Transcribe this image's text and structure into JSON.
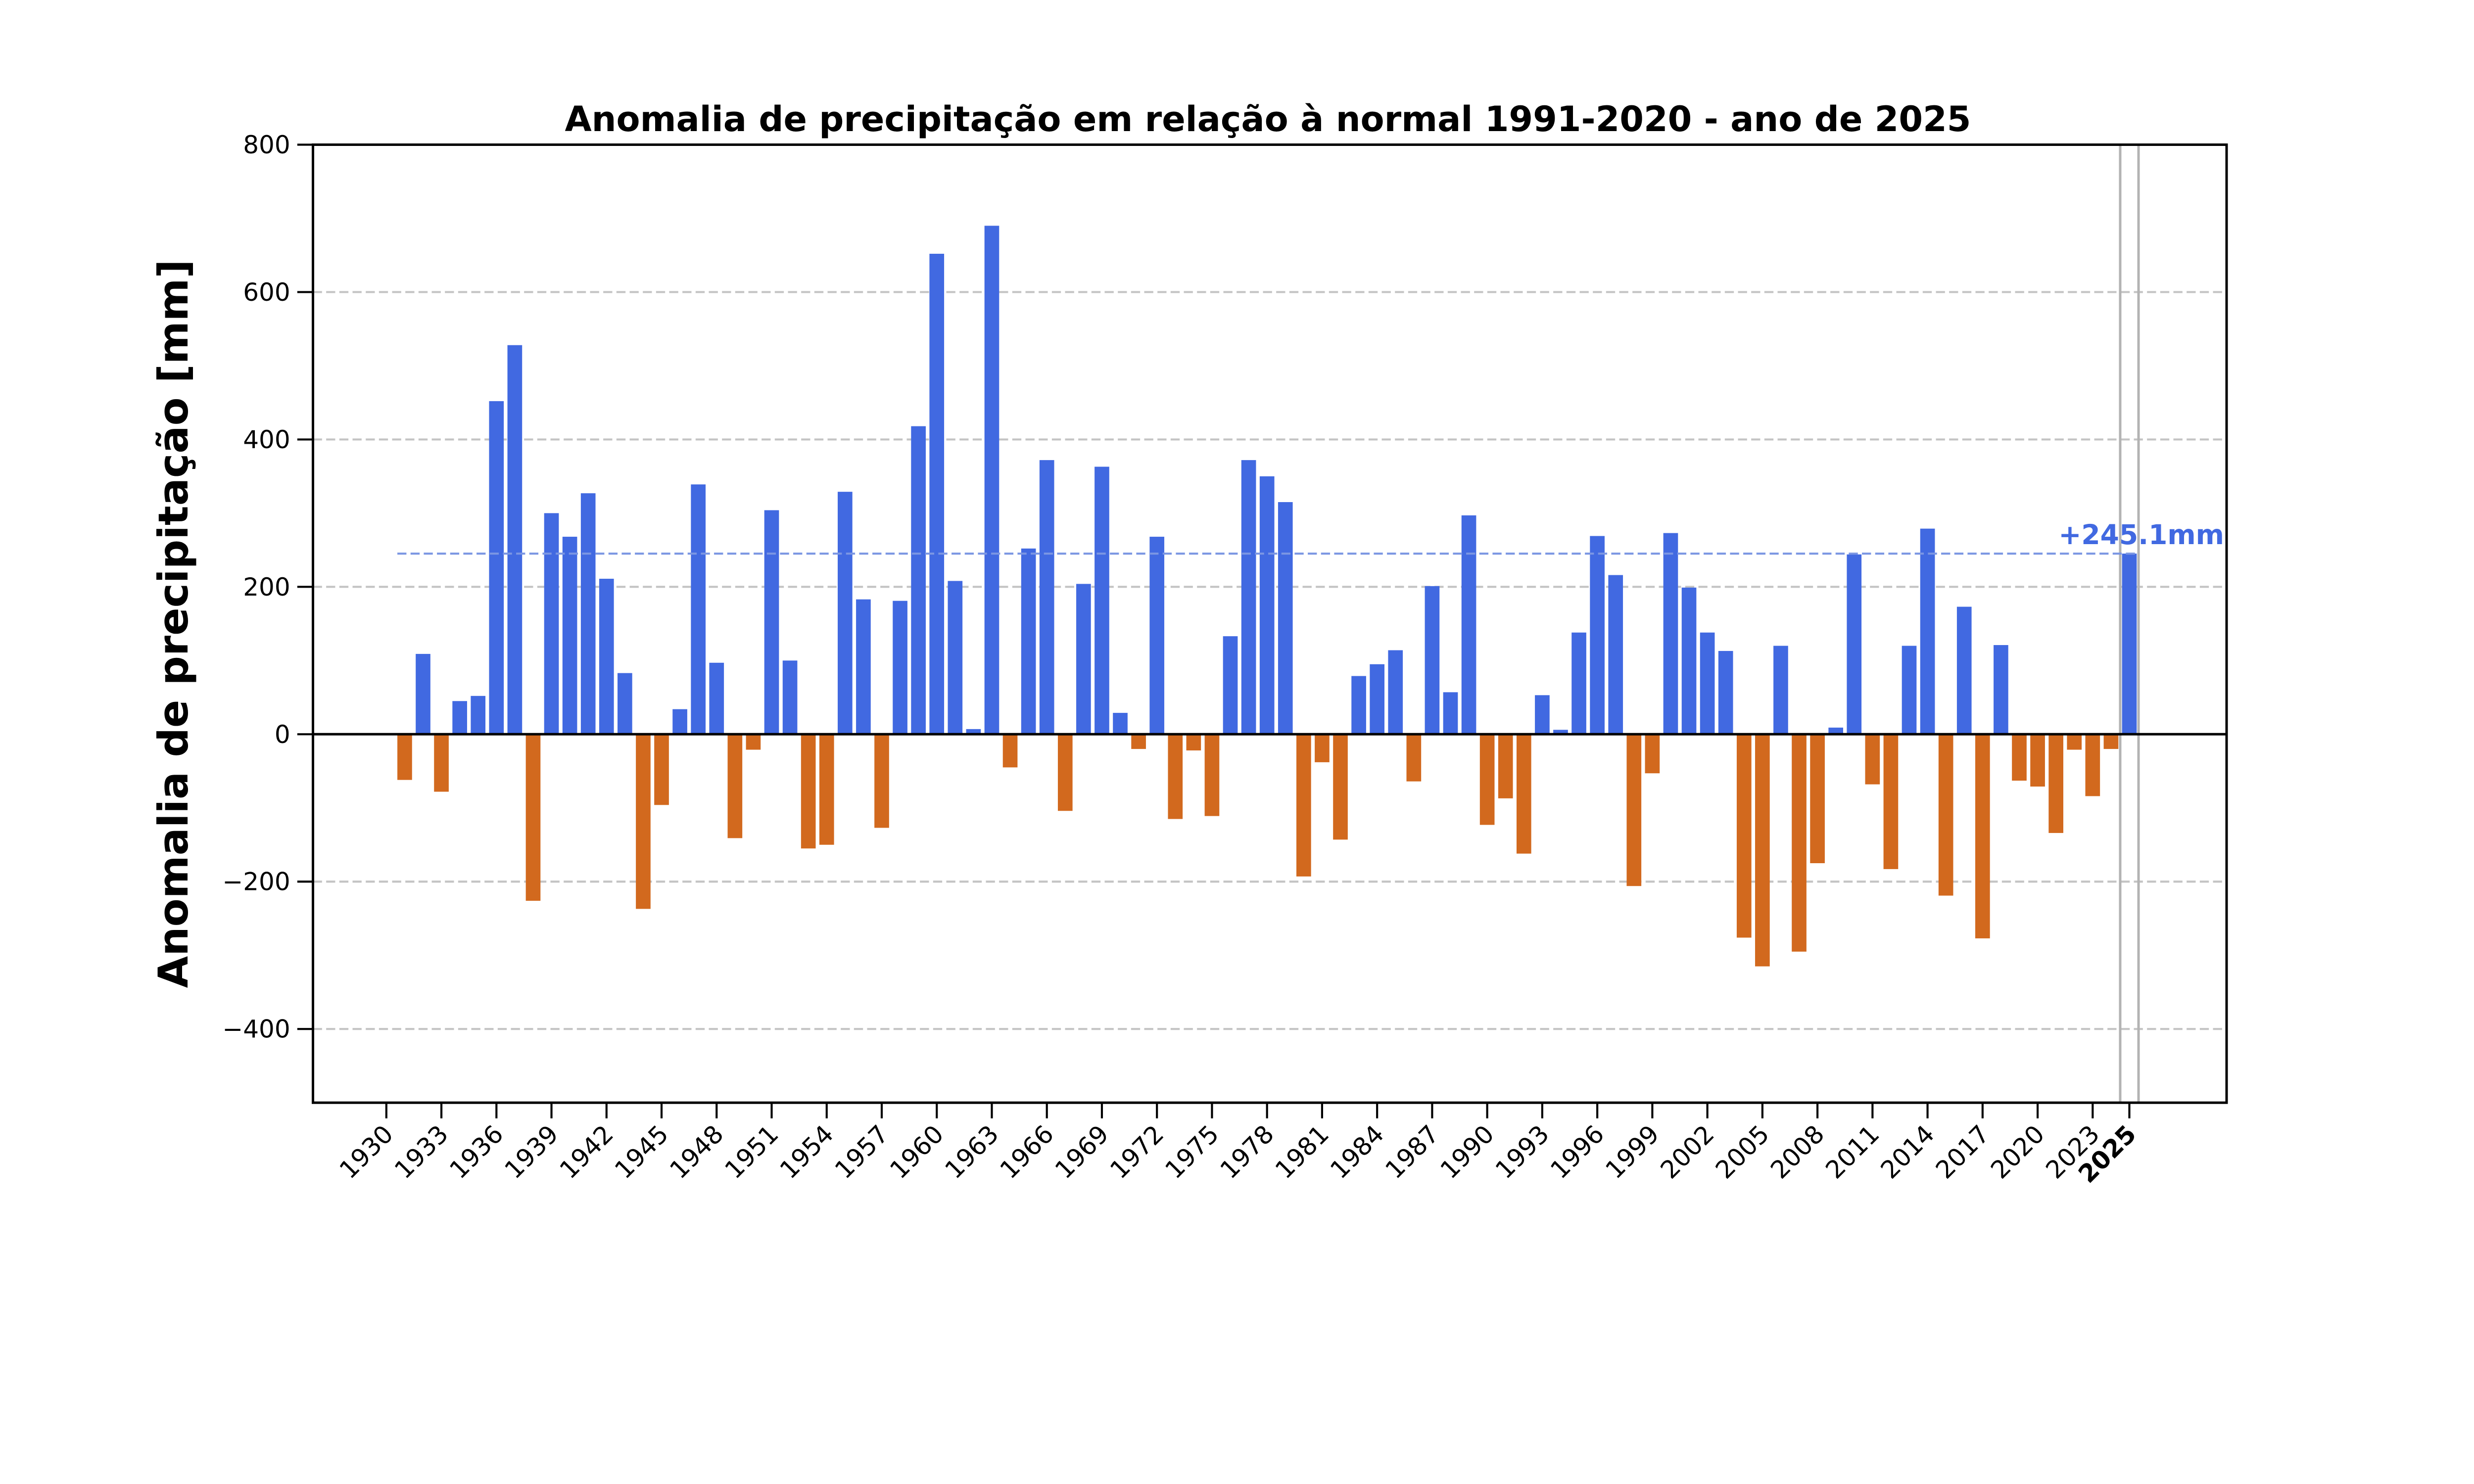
{
  "chart_data": {
    "type": "bar",
    "title": "Anomalia de precipitação em relação à normal 1991-2020 - ano de 2025",
    "xlabel": "",
    "ylabel": "Anomalia de precipitação [mm]",
    "xlim": [
      1926,
      2030.3
    ],
    "ylim": [
      -500,
      800
    ],
    "grid": {
      "y": true,
      "x": false,
      "style": "dashed"
    },
    "x_ticks": [
      1930,
      1933,
      1936,
      1939,
      1942,
      1945,
      1948,
      1951,
      1954,
      1957,
      1960,
      1963,
      1966,
      1969,
      1972,
      1975,
      1978,
      1981,
      1984,
      1987,
      1990,
      1993,
      1996,
      1999,
      2002,
      2005,
      2008,
      2011,
      2014,
      2017,
      2020,
      2023,
      2025
    ],
    "x_tick_bold": 2025,
    "y_ticks": [
      -400,
      -200,
      0,
      200,
      400,
      600,
      800
    ],
    "x": [
      1931,
      1932,
      1933,
      1934,
      1935,
      1936,
      1937,
      1938,
      1939,
      1940,
      1941,
      1942,
      1943,
      1944,
      1945,
      1946,
      1947,
      1948,
      1949,
      1950,
      1951,
      1952,
      1953,
      1954,
      1955,
      1956,
      1957,
      1958,
      1959,
      1960,
      1961,
      1962,
      1963,
      1964,
      1965,
      1966,
      1967,
      1968,
      1969,
      1970,
      1971,
      1972,
      1973,
      1974,
      1975,
      1976,
      1977,
      1978,
      1979,
      1980,
      1981,
      1982,
      1983,
      1984,
      1985,
      1986,
      1987,
      1988,
      1989,
      1990,
      1991,
      1992,
      1993,
      1994,
      1995,
      1996,
      1997,
      1998,
      1999,
      2000,
      2001,
      2002,
      2003,
      2004,
      2005,
      2006,
      2007,
      2008,
      2009,
      2010,
      2011,
      2012,
      2013,
      2014,
      2015,
      2016,
      2017,
      2018,
      2019,
      2020,
      2021,
      2022,
      2023,
      2024,
      2025
    ],
    "values": [
      -62,
      109,
      -78,
      45,
      52,
      452,
      528,
      -226,
      300,
      268,
      327,
      211,
      83,
      -237,
      -96,
      34,
      339,
      97,
      -141,
      -21,
      304,
      100,
      -155,
      -150,
      329,
      183,
      -127,
      181,
      418,
      652,
      208,
      7,
      690,
      -45,
      252,
      372,
      -104,
      204,
      363,
      29,
      -20,
      268,
      -115,
      -22,
      -111,
      133,
      372,
      350,
      315,
      -193,
      -38,
      -143,
      79,
      95,
      114,
      -64,
      201,
      57,
      297,
      -123,
      -87,
      -162,
      53,
      6,
      138,
      269,
      216,
      -206,
      -53,
      273,
      199,
      138,
      113,
      -276,
      -315,
      120,
      -295,
      -175,
      9,
      244,
      -68,
      -183,
      120,
      279,
      -219,
      173,
      -277,
      121,
      -63,
      -71,
      -134,
      -21,
      -84,
      -20,
      245.1
    ],
    "reference_line": {
      "value": 245.1,
      "label": "+245.1mm",
      "style": "dashed"
    },
    "highlight_year": 2025,
    "colors": {
      "positive": "#4169E1",
      "negative": "#D2691E",
      "reference_line": "#7B96E3",
      "annotation": "#4169E1",
      "grid": "#C4C4C4",
      "highlight_lines": "#B3B3B3"
    }
  }
}
